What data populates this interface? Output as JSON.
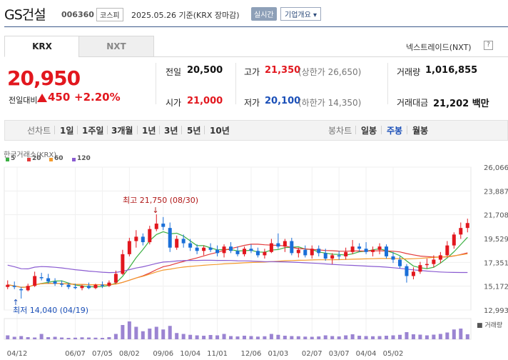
{
  "header": {
    "name": "GS건설",
    "code": "006360",
    "market": "코스피",
    "date_text": "2025.05.26  기준(KRX 장마감)",
    "realtime_label": "실시간",
    "corp_label": "기업개요 ▾"
  },
  "tabs": {
    "krx": "KRX",
    "nxt": "NXT"
  },
  "nxt_link": "넥스트레이드(NXT)",
  "nxt_help": "?",
  "price": {
    "current": "20,950",
    "change_label": "전일대비",
    "change": "450",
    "change_pct": "+2.20%"
  },
  "stats": {
    "prev_label": "전일",
    "prev": "20,500",
    "open_label": "시가",
    "open": "21,000",
    "high_label": "고가",
    "high": "21,350",
    "upper_limit": "(상한가 26,650)",
    "low_label": "저가",
    "low": "20,100",
    "lower_limit": "(하한가 14,350)",
    "volume_label": "거래량",
    "volume": "1,016,855",
    "amount_label": "거래대금",
    "amount": "21,202 백만"
  },
  "period_bar": {
    "line_chart": "선차트",
    "periods": [
      "1일",
      "1주일",
      "3개월",
      "1년",
      "3년",
      "5년",
      "10년"
    ],
    "candle_chart": "봉차트",
    "candle_periods": [
      "일봉",
      "주봉",
      "월봉"
    ],
    "active": "주봉"
  },
  "legend": {
    "source": "한국거래소(KRX)",
    "items": [
      {
        "label": "5",
        "color": "#3cb043"
      },
      {
        "label": "20",
        "color": "#e33b3b"
      },
      {
        "label": "60",
        "color": "#f39a2d"
      },
      {
        "label": "120",
        "color": "#8a5bd1"
      }
    ]
  },
  "chart_data": {
    "type": "candlestick",
    "y_ticks": [
      "26,066",
      "23,887",
      "21,708",
      "19,529",
      "17,351",
      "15,172",
      "12,993"
    ],
    "ylim": [
      12993,
      26066
    ],
    "x_ticks": [
      "04/12",
      "06/07",
      "07/05",
      "08/02",
      "09/06",
      "10/04",
      "11/01",
      "12/06",
      "01/03",
      "02/07",
      "03/07",
      "04/04",
      "05/02"
    ],
    "high_annotation": "최고 21,750 (08/30)",
    "low_annotation": "최저 14,040 (04/19)",
    "volume_label": "거래량",
    "up_color": "#e2171e",
    "down_color": "#1a6fd8",
    "candles": [
      {
        "o": 15100,
        "h": 15700,
        "l": 14900,
        "c": 15300
      },
      {
        "o": 15200,
        "h": 15600,
        "l": 14900,
        "c": 15100
      },
      {
        "o": 14900,
        "h": 15100,
        "l": 14040,
        "c": 14800
      },
      {
        "o": 14800,
        "h": 15400,
        "l": 14700,
        "c": 15200
      },
      {
        "o": 15200,
        "h": 16500,
        "l": 15100,
        "c": 16100
      },
      {
        "o": 16000,
        "h": 16400,
        "l": 15700,
        "c": 15900
      },
      {
        "o": 15900,
        "h": 16300,
        "l": 15400,
        "c": 15600
      },
      {
        "o": 15600,
        "h": 15900,
        "l": 15200,
        "c": 15400
      },
      {
        "o": 15400,
        "h": 15700,
        "l": 15100,
        "c": 15300
      },
      {
        "o": 15300,
        "h": 15500,
        "l": 14900,
        "c": 15100
      },
      {
        "o": 15100,
        "h": 15400,
        "l": 14900,
        "c": 15000
      },
      {
        "o": 15000,
        "h": 15300,
        "l": 14800,
        "c": 15200
      },
      {
        "o": 15200,
        "h": 15500,
        "l": 14900,
        "c": 15000
      },
      {
        "o": 15000,
        "h": 15400,
        "l": 14900,
        "c": 15300
      },
      {
        "o": 15300,
        "h": 15600,
        "l": 15000,
        "c": 15200
      },
      {
        "o": 15200,
        "h": 15700,
        "l": 15100,
        "c": 15500
      },
      {
        "o": 15500,
        "h": 16600,
        "l": 15400,
        "c": 16300
      },
      {
        "o": 16300,
        "h": 18500,
        "l": 16200,
        "c": 18100
      },
      {
        "o": 18100,
        "h": 19600,
        "l": 17900,
        "c": 19300
      },
      {
        "o": 19300,
        "h": 20300,
        "l": 18700,
        "c": 19700
      },
      {
        "o": 19700,
        "h": 20000,
        "l": 18900,
        "c": 19200
      },
      {
        "o": 19200,
        "h": 20700,
        "l": 19000,
        "c": 20400
      },
      {
        "o": 20400,
        "h": 21750,
        "l": 20200,
        "c": 20900
      },
      {
        "o": 20900,
        "h": 21500,
        "l": 20300,
        "c": 20600
      },
      {
        "o": 20500,
        "h": 21000,
        "l": 18300,
        "c": 18700
      },
      {
        "o": 18700,
        "h": 19800,
        "l": 18500,
        "c": 19500
      },
      {
        "o": 19500,
        "h": 19900,
        "l": 18700,
        "c": 19100
      },
      {
        "o": 19100,
        "h": 19500,
        "l": 18400,
        "c": 18700
      },
      {
        "o": 18700,
        "h": 19000,
        "l": 18100,
        "c": 18400
      },
      {
        "o": 18400,
        "h": 18900,
        "l": 18000,
        "c": 18700
      },
      {
        "o": 18700,
        "h": 19100,
        "l": 18300,
        "c": 18500
      },
      {
        "o": 18500,
        "h": 18900,
        "l": 17900,
        "c": 18200
      },
      {
        "o": 18200,
        "h": 19000,
        "l": 17800,
        "c": 18800
      },
      {
        "o": 18800,
        "h": 19200,
        "l": 18200,
        "c": 18400
      },
      {
        "o": 18400,
        "h": 18800,
        "l": 17900,
        "c": 18100
      },
      {
        "o": 18100,
        "h": 18800,
        "l": 17900,
        "c": 18600
      },
      {
        "o": 18600,
        "h": 19000,
        "l": 18200,
        "c": 18400
      },
      {
        "o": 18400,
        "h": 18700,
        "l": 17800,
        "c": 18000
      },
      {
        "o": 18000,
        "h": 18600,
        "l": 17700,
        "c": 18300
      },
      {
        "o": 18300,
        "h": 19500,
        "l": 18200,
        "c": 19100
      },
      {
        "o": 19100,
        "h": 20000,
        "l": 18600,
        "c": 18800
      },
      {
        "o": 18800,
        "h": 19500,
        "l": 18300,
        "c": 19300
      },
      {
        "o": 19300,
        "h": 19600,
        "l": 18000,
        "c": 18200
      },
      {
        "o": 18200,
        "h": 18700,
        "l": 17800,
        "c": 18500
      },
      {
        "o": 18500,
        "h": 18900,
        "l": 17800,
        "c": 18000
      },
      {
        "o": 18000,
        "h": 18900,
        "l": 17700,
        "c": 18600
      },
      {
        "o": 18600,
        "h": 18900,
        "l": 17900,
        "c": 18200
      },
      {
        "o": 18200,
        "h": 18600,
        "l": 17500,
        "c": 17700
      },
      {
        "o": 17700,
        "h": 18200,
        "l": 17200,
        "c": 18000
      },
      {
        "o": 18000,
        "h": 18400,
        "l": 17600,
        "c": 17900
      },
      {
        "o": 17900,
        "h": 18700,
        "l": 17600,
        "c": 18300
      },
      {
        "o": 18300,
        "h": 19400,
        "l": 18100,
        "c": 18800
      },
      {
        "o": 18800,
        "h": 19100,
        "l": 18300,
        "c": 18600
      },
      {
        "o": 18600,
        "h": 19200,
        "l": 18100,
        "c": 18300
      },
      {
        "o": 18300,
        "h": 18800,
        "l": 17900,
        "c": 18500
      },
      {
        "o": 18500,
        "h": 19100,
        "l": 18100,
        "c": 18800
      },
      {
        "o": 18800,
        "h": 19000,
        "l": 17700,
        "c": 17900
      },
      {
        "o": 17900,
        "h": 18300,
        "l": 17300,
        "c": 17600
      },
      {
        "o": 17600,
        "h": 17900,
        "l": 16800,
        "c": 17000
      },
      {
        "o": 17000,
        "h": 17200,
        "l": 15500,
        "c": 16100
      },
      {
        "o": 16100,
        "h": 16900,
        "l": 15800,
        "c": 16500
      },
      {
        "o": 16500,
        "h": 17400,
        "l": 16300,
        "c": 17100
      },
      {
        "o": 17100,
        "h": 17700,
        "l": 16800,
        "c": 17200
      },
      {
        "o": 17200,
        "h": 18000,
        "l": 16900,
        "c": 17600
      },
      {
        "o": 17600,
        "h": 18300,
        "l": 17300,
        "c": 18000
      },
      {
        "o": 18000,
        "h": 19300,
        "l": 17900,
        "c": 18900
      },
      {
        "o": 18900,
        "h": 20100,
        "l": 18600,
        "c": 19900
      },
      {
        "o": 19900,
        "h": 21000,
        "l": 19500,
        "c": 20500
      },
      {
        "o": 20500,
        "h": 21350,
        "l": 20100,
        "c": 20950
      }
    ],
    "volumes": [
      22,
      14,
      18,
      12,
      10,
      30,
      12,
      14,
      10,
      8,
      9,
      11,
      10,
      9,
      8,
      12,
      30,
      80,
      100,
      70,
      45,
      60,
      70,
      55,
      75,
      35,
      30,
      25,
      22,
      20,
      24,
      22,
      30,
      18,
      16,
      20,
      18,
      15,
      17,
      30,
      25,
      20,
      18,
      17,
      15,
      14,
      16,
      22,
      18,
      16,
      22,
      28,
      20,
      18,
      17,
      18,
      20,
      22,
      25,
      40,
      28,
      26,
      22,
      26,
      30,
      38,
      55,
      60,
      28
    ]
  }
}
